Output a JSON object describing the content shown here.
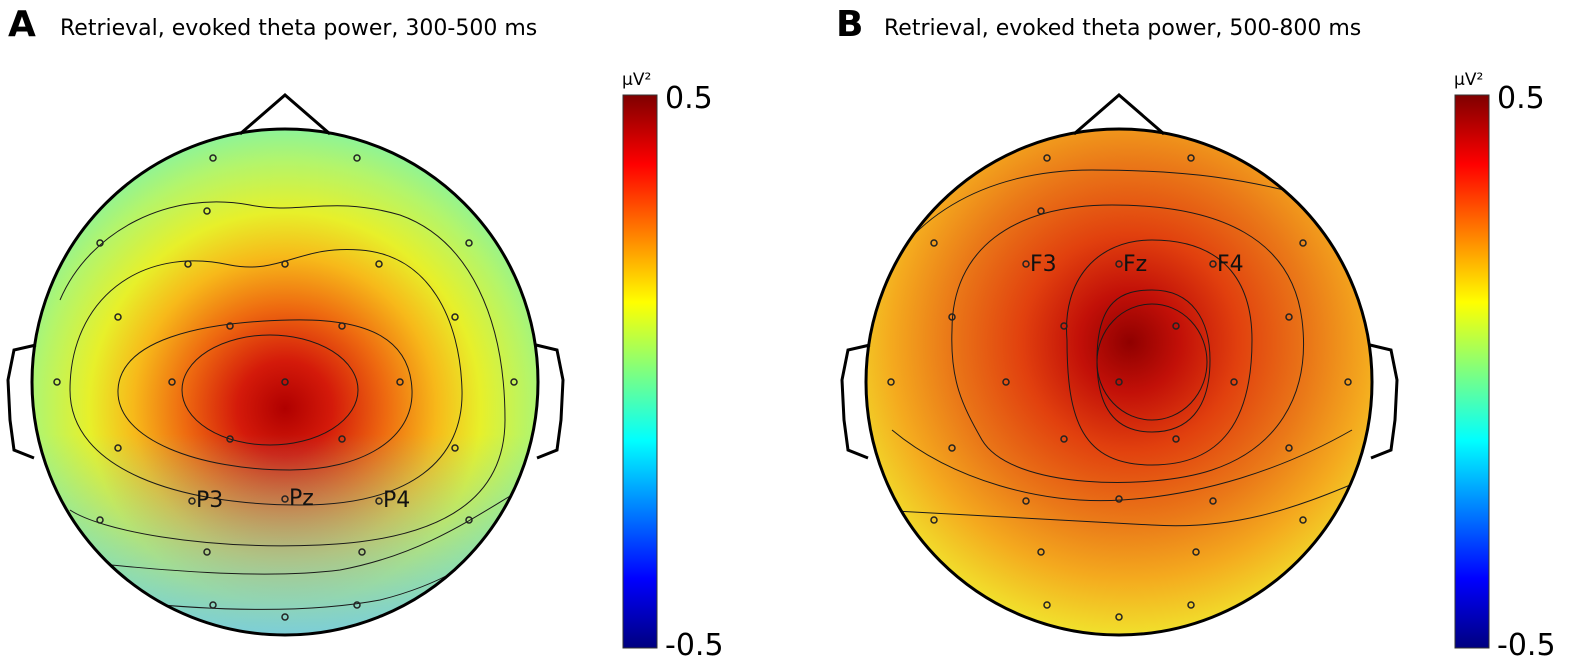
{
  "colors": {
    "jet": [
      "#00007f",
      "#0000ff",
      "#007fff",
      "#00ffff",
      "#7fff7f",
      "#ffff00",
      "#ff7f00",
      "#ff0000",
      "#7f0000"
    ]
  },
  "panels": [
    {
      "letter": "A",
      "title": "Retrieval, evoked theta power, 300-500 ms",
      "colorbar": {
        "unit": "μV²",
        "max_label": "0.5",
        "min_label": "-0.5",
        "range": [
          -0.5,
          0.5
        ]
      },
      "labeled_electrodes": [
        {
          "label": "P3"
        },
        {
          "label": "Pz"
        },
        {
          "label": "P4"
        }
      ]
    },
    {
      "letter": "B",
      "title": "Retrieval, evoked theta power, 500-800 ms",
      "colorbar": {
        "unit": "μV²",
        "max_label": "0.5",
        "min_label": "-0.5",
        "range": [
          -0.5,
          0.5
        ]
      },
      "labeled_electrodes": [
        {
          "label": "F3"
        },
        {
          "label": "Fz"
        },
        {
          "label": "F4"
        }
      ]
    }
  ]
}
